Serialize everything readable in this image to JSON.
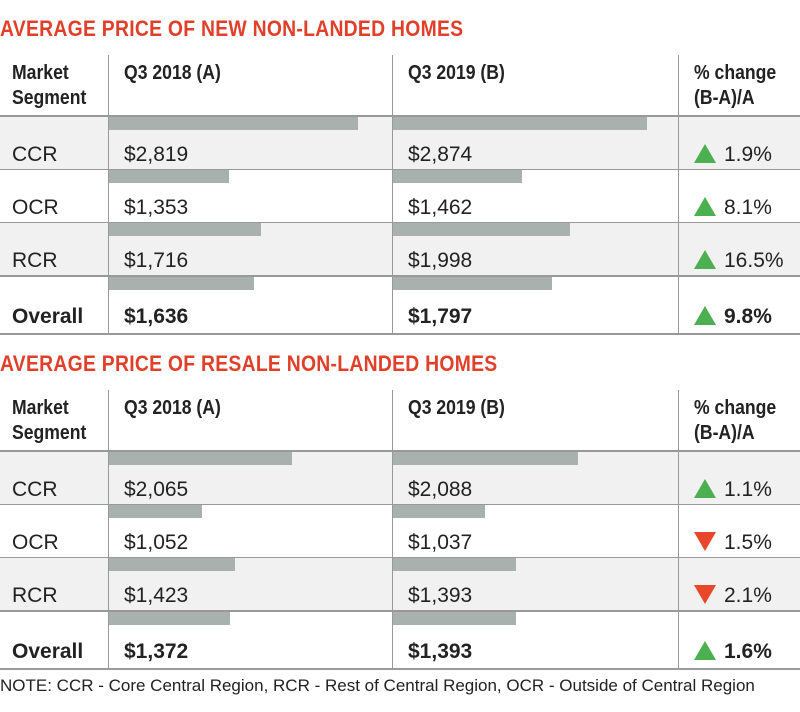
{
  "chart_data": [
    {
      "type": "table",
      "title": "AVERAGE PRICE OF NEW NON-LANDED HOMES",
      "columns": [
        "Market Segment",
        "Q3 2018 (A)",
        "Q3 2019 (B)",
        "% change (B-A)/A"
      ],
      "rows": [
        {
          "segment": "CCR",
          "a": 2819,
          "a_label": "$2,819",
          "b": 2874,
          "b_label": "$2,874",
          "change": "1.9%",
          "direction": "up"
        },
        {
          "segment": "OCR",
          "a": 1353,
          "a_label": "$1,353",
          "b": 1462,
          "b_label": "$1,462",
          "change": "8.1%",
          "direction": "up"
        },
        {
          "segment": "RCR",
          "a": 1716,
          "a_label": "$1,716",
          "b": 1998,
          "b_label": "$1,998",
          "change": "16.5%",
          "direction": "up"
        },
        {
          "segment": "Overall",
          "a": 1636,
          "a_label": "$1,636",
          "b": 1797,
          "b_label": "$1,797",
          "change": "9.8%",
          "direction": "up"
        }
      ]
    },
    {
      "type": "table",
      "title": "AVERAGE PRICE OF RESALE NON-LANDED HOMES",
      "columns": [
        "Market Segment",
        "Q3 2018 (A)",
        "Q3 2019 (B)",
        "% change (B-A)/A"
      ],
      "rows": [
        {
          "segment": "CCR",
          "a": 2065,
          "a_label": "$2,065",
          "b": 2088,
          "b_label": "$2,088",
          "change": "1.1%",
          "direction": "up"
        },
        {
          "segment": "OCR",
          "a": 1052,
          "a_label": "$1,052",
          "b": 1037,
          "b_label": "$1,037",
          "change": "1.5%",
          "direction": "down"
        },
        {
          "segment": "RCR",
          "a": 1423,
          "a_label": "$1,423",
          "b": 1393,
          "b_label": "$1,393",
          "change": "2.1%",
          "direction": "down"
        },
        {
          "segment": "Overall",
          "a": 1372,
          "a_label": "$1,372",
          "b": 1393,
          "b_label": "$1,393",
          "change": "1.6%",
          "direction": "up"
        }
      ]
    }
  ],
  "header": {
    "segment_l1": "Market",
    "segment_l2": "Segment",
    "a": "Q3 2018 (A)",
    "b": "Q3 2019 (B)",
    "chg_l1": "% change",
    "chg_l2": "(B-A)/A"
  },
  "colors": {
    "title": "#e0402a",
    "bar": "#a9b1af",
    "up": "#4caf50",
    "down": "#e8472b"
  },
  "note": "NOTE: CCR - Core Central Region, RCR - Rest of Central Region, OCR - Outside of Central Region"
}
